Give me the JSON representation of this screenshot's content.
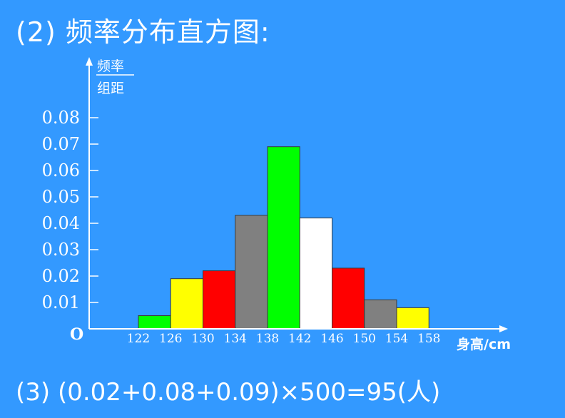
{
  "heading": "(2) 频率分布直方图:",
  "formula": "(3) (0.02+0.08+0.09)×500=95(人)",
  "chart_data": {
    "type": "bar",
    "title": "",
    "ylabel_numerator": "频率",
    "ylabel_denominator": "组距",
    "xlabel": "身高/cm",
    "origin_label": "O",
    "x_edges": [
      122,
      126,
      130,
      134,
      138,
      142,
      146,
      150,
      154,
      158
    ],
    "x_tick_labels": [
      "122",
      "126",
      "130",
      "134",
      "138",
      "142",
      "146",
      "150",
      "154",
      "158"
    ],
    "y_ticks": [
      0.01,
      0.02,
      0.03,
      0.04,
      0.05,
      0.06,
      0.07,
      0.08
    ],
    "y_tick_labels": [
      "0.01",
      "0.02",
      "0.03",
      "0.04",
      "0.05",
      "0.06",
      "0.07",
      "0.08"
    ],
    "ylim": [
      0,
      0.08
    ],
    "grid": false,
    "bins": [
      {
        "range": [
          122,
          126
        ],
        "value": 0.005,
        "color": "#00ff00"
      },
      {
        "range": [
          126,
          130
        ],
        "value": 0.019,
        "color": "#ffff00"
      },
      {
        "range": [
          130,
          134
        ],
        "value": 0.022,
        "color": "#ff0000"
      },
      {
        "range": [
          134,
          138
        ],
        "value": 0.043,
        "color": "#808080"
      },
      {
        "range": [
          138,
          142
        ],
        "value": 0.069,
        "color": "#00ff00"
      },
      {
        "range": [
          142,
          146
        ],
        "value": 0.042,
        "color": "#ffffff"
      },
      {
        "range": [
          146,
          150
        ],
        "value": 0.023,
        "color": "#ff0000"
      },
      {
        "range": [
          150,
          154
        ],
        "value": 0.011,
        "color": "#808080"
      },
      {
        "range": [
          154,
          158
        ],
        "value": 0.008,
        "color": "#ffff00"
      }
    ]
  }
}
